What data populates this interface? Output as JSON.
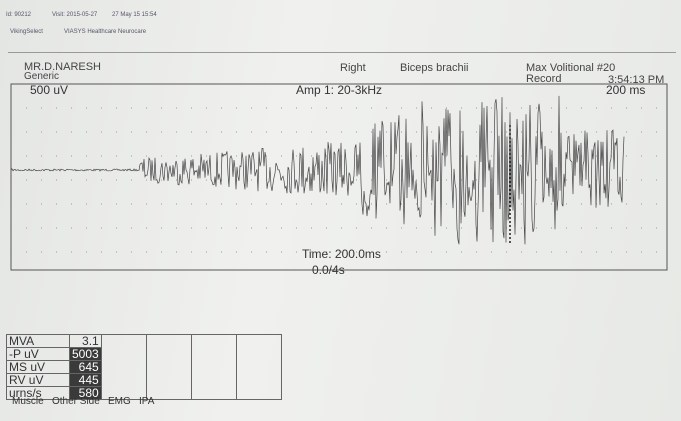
{
  "header": {
    "id": "Id: 90212",
    "visit": "Visit: 2015-05-27",
    "date": "27 May 15 15:54",
    "system": "VikingSelect",
    "vendor": "VIASYS Healthcare Neurocare"
  },
  "panel": {
    "patient": "MR.D.NARESH",
    "group": "Generic",
    "side": "Right",
    "muscle": "Biceps brachii",
    "test": "Max Volitional #20",
    "mode": "Record",
    "clock": "3:54:13 PM",
    "sensitivity": "500 uV",
    "amplifier": "Amp 1: 20-3kHz",
    "sweep": "200 ms",
    "time": "Time: 200.0ms",
    "position": "0.0/4s"
  },
  "table": {
    "rows": [
      [
        "MVA",
        "3.1"
      ],
      [
        "-P uV",
        "5003"
      ],
      [
        "MS uV",
        "645"
      ],
      [
        "RV uV",
        "445"
      ],
      [
        "urns/s",
        "580"
      ]
    ]
  },
  "tabs": [
    "Muscle",
    "Other Side",
    "EMG",
    "IPA"
  ]
}
